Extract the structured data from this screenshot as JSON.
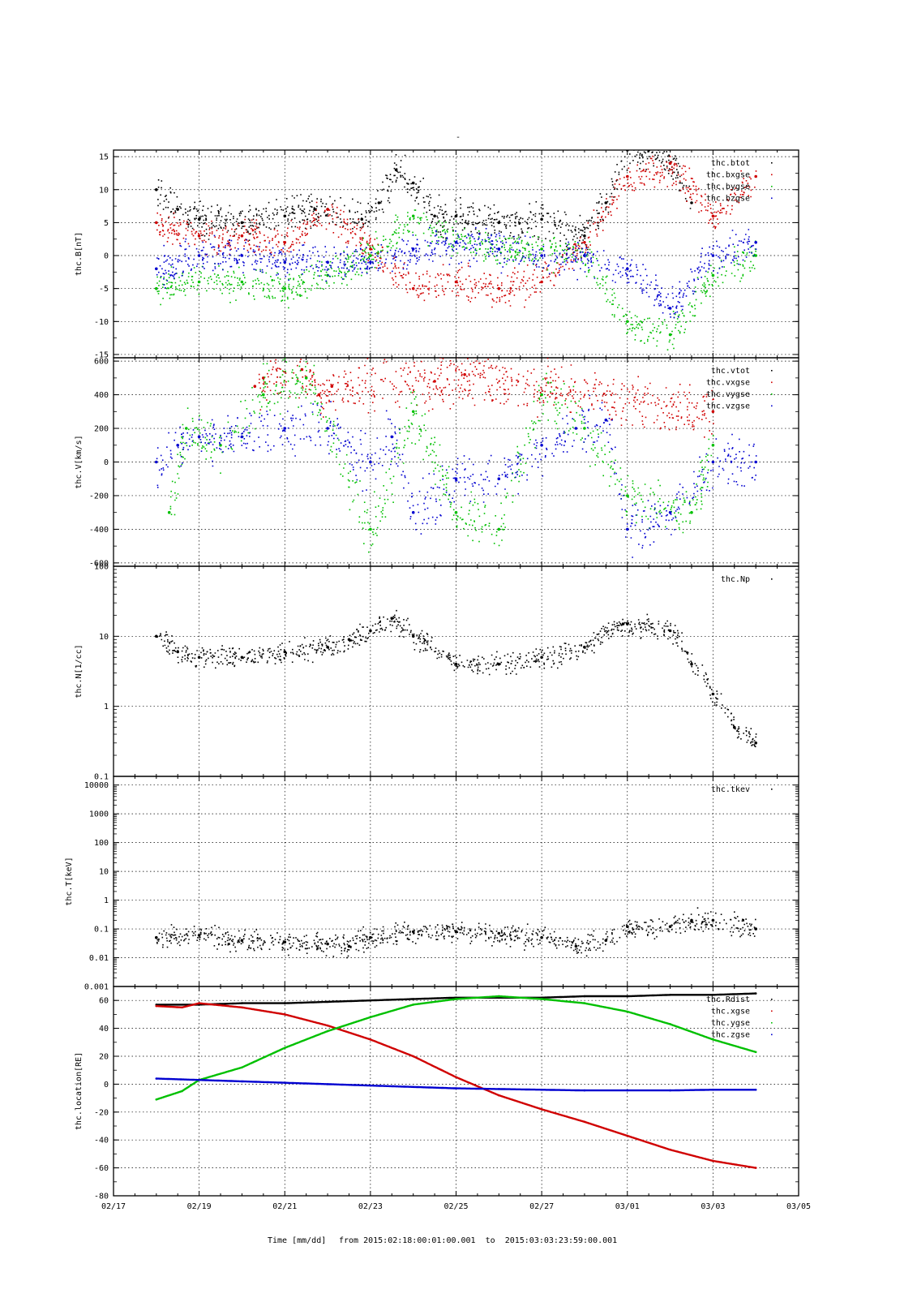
{
  "figure": {
    "top_mark": "-",
    "footer": {
      "label": "Time [mm/dd]",
      "range_text": "from 2015:02:18:00:01:00.001  to  2015:03:03:23:59:00.001"
    },
    "x_axis": {
      "start": "02/17",
      "end": "03/05",
      "ticks": [
        "02/17",
        "02/19",
        "02/21",
        "02/23",
        "02/25",
        "02/27",
        "03/01",
        "03/03",
        "03/05"
      ],
      "data_start": "02/18",
      "data_end": "03/04"
    },
    "colors": {
      "black": "#000000",
      "red": "#d00000",
      "green": "#00c000",
      "blue": "#0000d0"
    }
  },
  "chart_data": [
    {
      "type": "scatter",
      "ylabel": "thc.B[nT]",
      "ylim": [
        -15.5,
        16
      ],
      "yscale": "linear",
      "yticks": [
        -15,
        -10,
        -5,
        0,
        5,
        10,
        15
      ],
      "grid": true,
      "legend": "top-right",
      "series": [
        {
          "name": "thc.btot",
          "color": "black",
          "x": [
            "02/18",
            "02/18.5",
            "02/19",
            "02/20",
            "02/21",
            "02/21.7",
            "02/22",
            "02/22.8",
            "02/23.2",
            "02/23.6",
            "02/24",
            "02/24.5",
            "02/25",
            "02/26",
            "02/27",
            "02/28",
            "02/28.5",
            "03/01",
            "03/01.5",
            "03/02",
            "03/02.5"
          ],
          "y": [
            10,
            7,
            5.5,
            5,
            6,
            7,
            7,
            5.5,
            8,
            13,
            11,
            6,
            6,
            5,
            5.5,
            3,
            8,
            16,
            16,
            14,
            8
          ]
        },
        {
          "name": "thc.bxgse",
          "color": "red",
          "x": [
            "02/18",
            "02/19",
            "02/20",
            "02/21",
            "02/22",
            "02/23",
            "02/24",
            "02/25",
            "02/26",
            "02/27",
            "02/28",
            "03/01",
            "03/02",
            "03/03",
            "03/04"
          ],
          "y": [
            5,
            3,
            3,
            2,
            7,
            1,
            -5,
            -4,
            -5,
            -4,
            2,
            12,
            14,
            6,
            12
          ]
        },
        {
          "name": "thc.bygse",
          "color": "green",
          "x": [
            "02/18",
            "02/19",
            "02/20",
            "02/21",
            "02/22",
            "02/23",
            "02/24",
            "02/25",
            "02/26",
            "02/27",
            "02/28",
            "03/01",
            "03/02",
            "03/03",
            "03/04"
          ],
          "y": [
            -5,
            -4,
            -4,
            -5,
            -3,
            0,
            6,
            2,
            1,
            1,
            0,
            -10,
            -12,
            -3,
            0
          ]
        },
        {
          "name": "thc.bzgse",
          "color": "blue",
          "x": [
            "02/18",
            "02/19",
            "02/20",
            "02/21",
            "02/22",
            "02/23",
            "02/24",
            "02/25",
            "02/26",
            "02/27",
            "02/28",
            "03/01",
            "03/02",
            "03/03",
            "03/04"
          ],
          "y": [
            -2,
            0,
            0,
            -1,
            -1,
            -1,
            1,
            2,
            1,
            0,
            0,
            -2,
            -8,
            0,
            2
          ]
        }
      ]
    },
    {
      "type": "scatter",
      "ylabel": "thc.V[km/s]",
      "ylim": [
        -620,
        620
      ],
      "yscale": "linear",
      "yticks": [
        -600,
        -400,
        -200,
        0,
        200,
        400,
        600
      ],
      "grid": true,
      "legend": "top-right",
      "series": [
        {
          "name": "thc.vtot",
          "color": "black",
          "x": [],
          "y": []
        },
        {
          "name": "thc.vxgse",
          "color": "red",
          "x": [
            "02/20.3",
            "02/20.5",
            "02/21.4",
            "02/21.8",
            "02/22.1",
            "02/24.5",
            "02/25.2",
            "03/03"
          ],
          "y": [
            450,
            500,
            550,
            400,
            450,
            480,
            520,
            300
          ]
        },
        {
          "name": "thc.vygse",
          "color": "green",
          "x": [
            "02/18.3",
            "02/18.7",
            "02/19.5",
            "02/20.5",
            "02/21.5",
            "02/23",
            "02/24",
            "02/25",
            "02/26",
            "02/27",
            "02/28",
            "03/01",
            "03/02.5",
            "03/03"
          ],
          "y": [
            -300,
            200,
            100,
            400,
            500,
            -400,
            300,
            -300,
            -400,
            400,
            200,
            -200,
            -300,
            100
          ]
        },
        {
          "name": "thc.vzgse",
          "color": "blue",
          "x": [
            "02/18",
            "02/18.5",
            "02/19",
            "02/20",
            "02/21",
            "02/22",
            "02/23",
            "02/23.5",
            "02/24",
            "02/25",
            "02/26",
            "02/27",
            "02/27.8",
            "02/28.5",
            "03/01",
            "03/02",
            "03/03",
            "03/04"
          ],
          "y": [
            0,
            100,
            150,
            150,
            200,
            200,
            0,
            150,
            -300,
            -100,
            -100,
            100,
            200,
            250,
            -400,
            -300,
            0,
            0
          ]
        }
      ]
    },
    {
      "type": "scatter",
      "ylabel": "thc.N[1/cc]",
      "ylim": [
        0.1,
        100
      ],
      "yscale": "log",
      "yticks": [
        0.1,
        1,
        10,
        100
      ],
      "grid": true,
      "legend": "top-right",
      "series": [
        {
          "name": "thc.Np",
          "color": "black",
          "x": [
            "02/18",
            "02/18.5",
            "02/19",
            "02/20",
            "02/21",
            "02/22",
            "02/22.5",
            "02/23",
            "02/23.5",
            "02/24",
            "02/25",
            "02/26",
            "02/27",
            "02/28",
            "02/28.9",
            "03/01",
            "03/02",
            "03/02.5",
            "03/03",
            "03/03.5",
            "03/04"
          ],
          "y": [
            10,
            6,
            5,
            5,
            6,
            7,
            9,
            12,
            18,
            10,
            4,
            4,
            5,
            7,
            15,
            15,
            12,
            4,
            1.5,
            0.5,
            0.3
          ]
        }
      ]
    },
    {
      "type": "scatter",
      "ylabel": "thc.T[keV]",
      "ylim": [
        0.001,
        20000
      ],
      "yscale": "log",
      "yticks": [
        "0.001",
        "0.01",
        "0.1",
        "1",
        "10",
        "100",
        "1000",
        "10000"
      ],
      "grid": true,
      "legend": "top-right",
      "series": [
        {
          "name": "thc.tkev",
          "color": "black",
          "x": [
            "02/18",
            "02/19",
            "02/20",
            "02/21",
            "02/22",
            "02/22.5",
            "02/23",
            "02/24",
            "02/25",
            "02/26",
            "02/27",
            "02/27.8",
            "02/28.5",
            "03/01",
            "03/02",
            "03/02.5",
            "03/03",
            "03/04"
          ],
          "y": [
            0.05,
            0.06,
            0.04,
            0.035,
            0.03,
            0.025,
            0.05,
            0.08,
            0.08,
            0.07,
            0.05,
            0.025,
            0.04,
            0.12,
            0.12,
            0.2,
            0.2,
            0.1
          ]
        }
      ]
    },
    {
      "type": "line",
      "ylabel": "thc.location[RE]",
      "ylim": [
        -80,
        70
      ],
      "yscale": "linear",
      "yticks": [
        -80,
        -60,
        -40,
        -20,
        0,
        20,
        40,
        60
      ],
      "grid": true,
      "legend": "top-right",
      "series": [
        {
          "name": "thc.Rdist",
          "color": "black",
          "x": [
            "02/18",
            "02/19",
            "02/20",
            "02/21",
            "02/22",
            "02/23",
            "02/24",
            "02/25",
            "02/26",
            "02/27",
            "02/28",
            "03/01",
            "03/02",
            "03/03",
            "03/04"
          ],
          "y": [
            57,
            57,
            58,
            58,
            59,
            60,
            61,
            62,
            62,
            62,
            63,
            63,
            64,
            64,
            65
          ]
        },
        {
          "name": "thc.xgse",
          "color": "red",
          "x": [
            "02/18",
            "02/18.6",
            "02/19",
            "02/20",
            "02/21",
            "02/22",
            "02/23",
            "02/24",
            "02/25",
            "02/26",
            "02/27",
            "02/28",
            "03/01",
            "03/02",
            "03/03",
            "03/04"
          ],
          "y": [
            56,
            55,
            58,
            55,
            50,
            42,
            32,
            20,
            5,
            -8,
            -18,
            -27,
            -37,
            -47,
            -55,
            -60
          ]
        },
        {
          "name": "thc.ygse",
          "color": "green",
          "x": [
            "02/18",
            "02/18.6",
            "02/19",
            "02/20",
            "02/21",
            "02/22",
            "02/23",
            "02/24",
            "02/25",
            "02/26",
            "02/27",
            "02/28",
            "03/01",
            "03/02",
            "03/03",
            "03/04"
          ],
          "y": [
            -11,
            -5,
            3,
            12,
            26,
            38,
            48,
            57,
            61,
            63,
            61,
            58,
            52,
            43,
            32,
            23
          ]
        },
        {
          "name": "thc.zgse",
          "color": "blue",
          "x": [
            "02/18",
            "02/19",
            "02/20",
            "02/21",
            "02/22",
            "02/23",
            "02/24",
            "02/25",
            "02/26",
            "02/27",
            "02/28",
            "03/01",
            "03/02",
            "03/03",
            "03/04"
          ],
          "y": [
            4,
            3,
            2,
            1,
            0,
            -1,
            -2,
            -3,
            -3.5,
            -4,
            -4.5,
            -4.5,
            -4.5,
            -4,
            -4
          ]
        }
      ]
    }
  ]
}
